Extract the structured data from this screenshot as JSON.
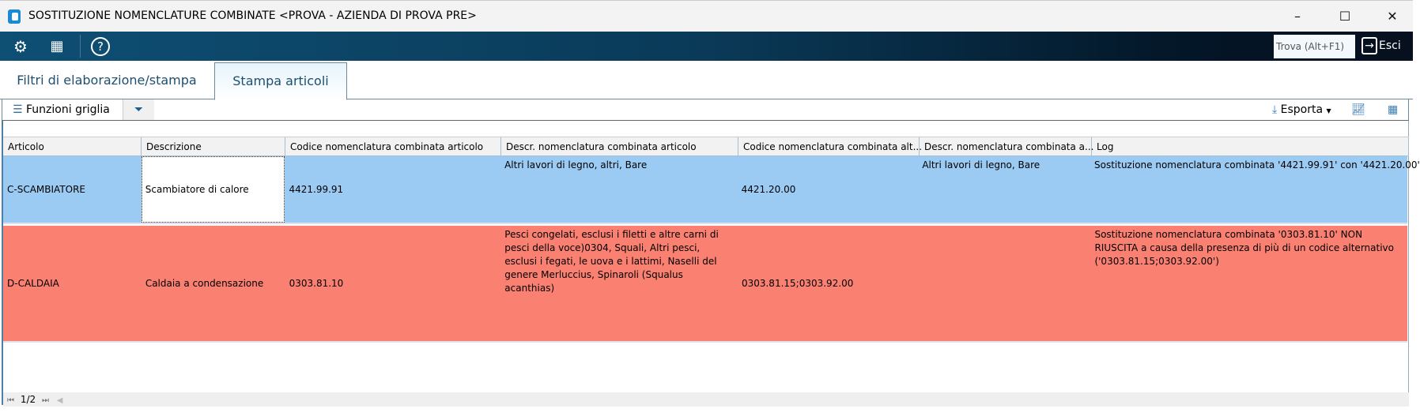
{
  "window": {
    "title": "SOSTITUZIONE NOMENCLATURE COMBINATE <PROVA - AZIENDA DI PROVA PRE>",
    "minimize": "–",
    "maximize": "☐",
    "close": "✕"
  },
  "toolbar": {
    "find_placeholder": "Trova (Alt+F1)",
    "exit_label": "Esci"
  },
  "tabs": [
    {
      "label": "Filtri di elaborazione/stampa",
      "active": false
    },
    {
      "label": "Stampa articoli",
      "active": true
    }
  ],
  "gridbar": {
    "functions_label": "Funzioni griglia",
    "export_label": "Esporta"
  },
  "columns": [
    "Articolo",
    "Descrizione",
    "Codice nomenclatura combinata articolo",
    "Descr. nomenclatura combinata articolo",
    "Codice nomenclatura combinata alt...",
    "Descr. nomenclatura combinata a...",
    "Log"
  ],
  "rows": [
    {
      "color": "#9bcbf3",
      "cells": [
        "C-SCAMBIATORE",
        "Scambiatore di calore",
        "4421.99.91",
        "Altri lavori di legno, altri, Bare",
        "4421.20.00",
        "Altri lavori di legno, Bare",
        "Sostituzione nomenclatura combinata '4421.99.91' con '4421.20.00'"
      ]
    },
    {
      "color": "#fa8072",
      "cells": [
        "D-CALDAIA",
        "Caldaia a condensazione",
        "0303.81.10",
        "Pesci congelati, esclusi i filetti e altre carni di pesci della voce)0304, Squali, Altri pesci, esclusi i fegati, le uova e i lattimi, Naselli del genere Merluccius, Spinaroli (Squalus acanthias)",
        "0303.81.15;0303.92.00",
        "",
        "Sostituzione nomenclatura combinata '0303.81.10' NON RIUSCITA a causa della presenza di più di un codice alternativo ('0303.81.15;0303.92.00')"
      ]
    }
  ],
  "pager": {
    "page": "1/2"
  }
}
